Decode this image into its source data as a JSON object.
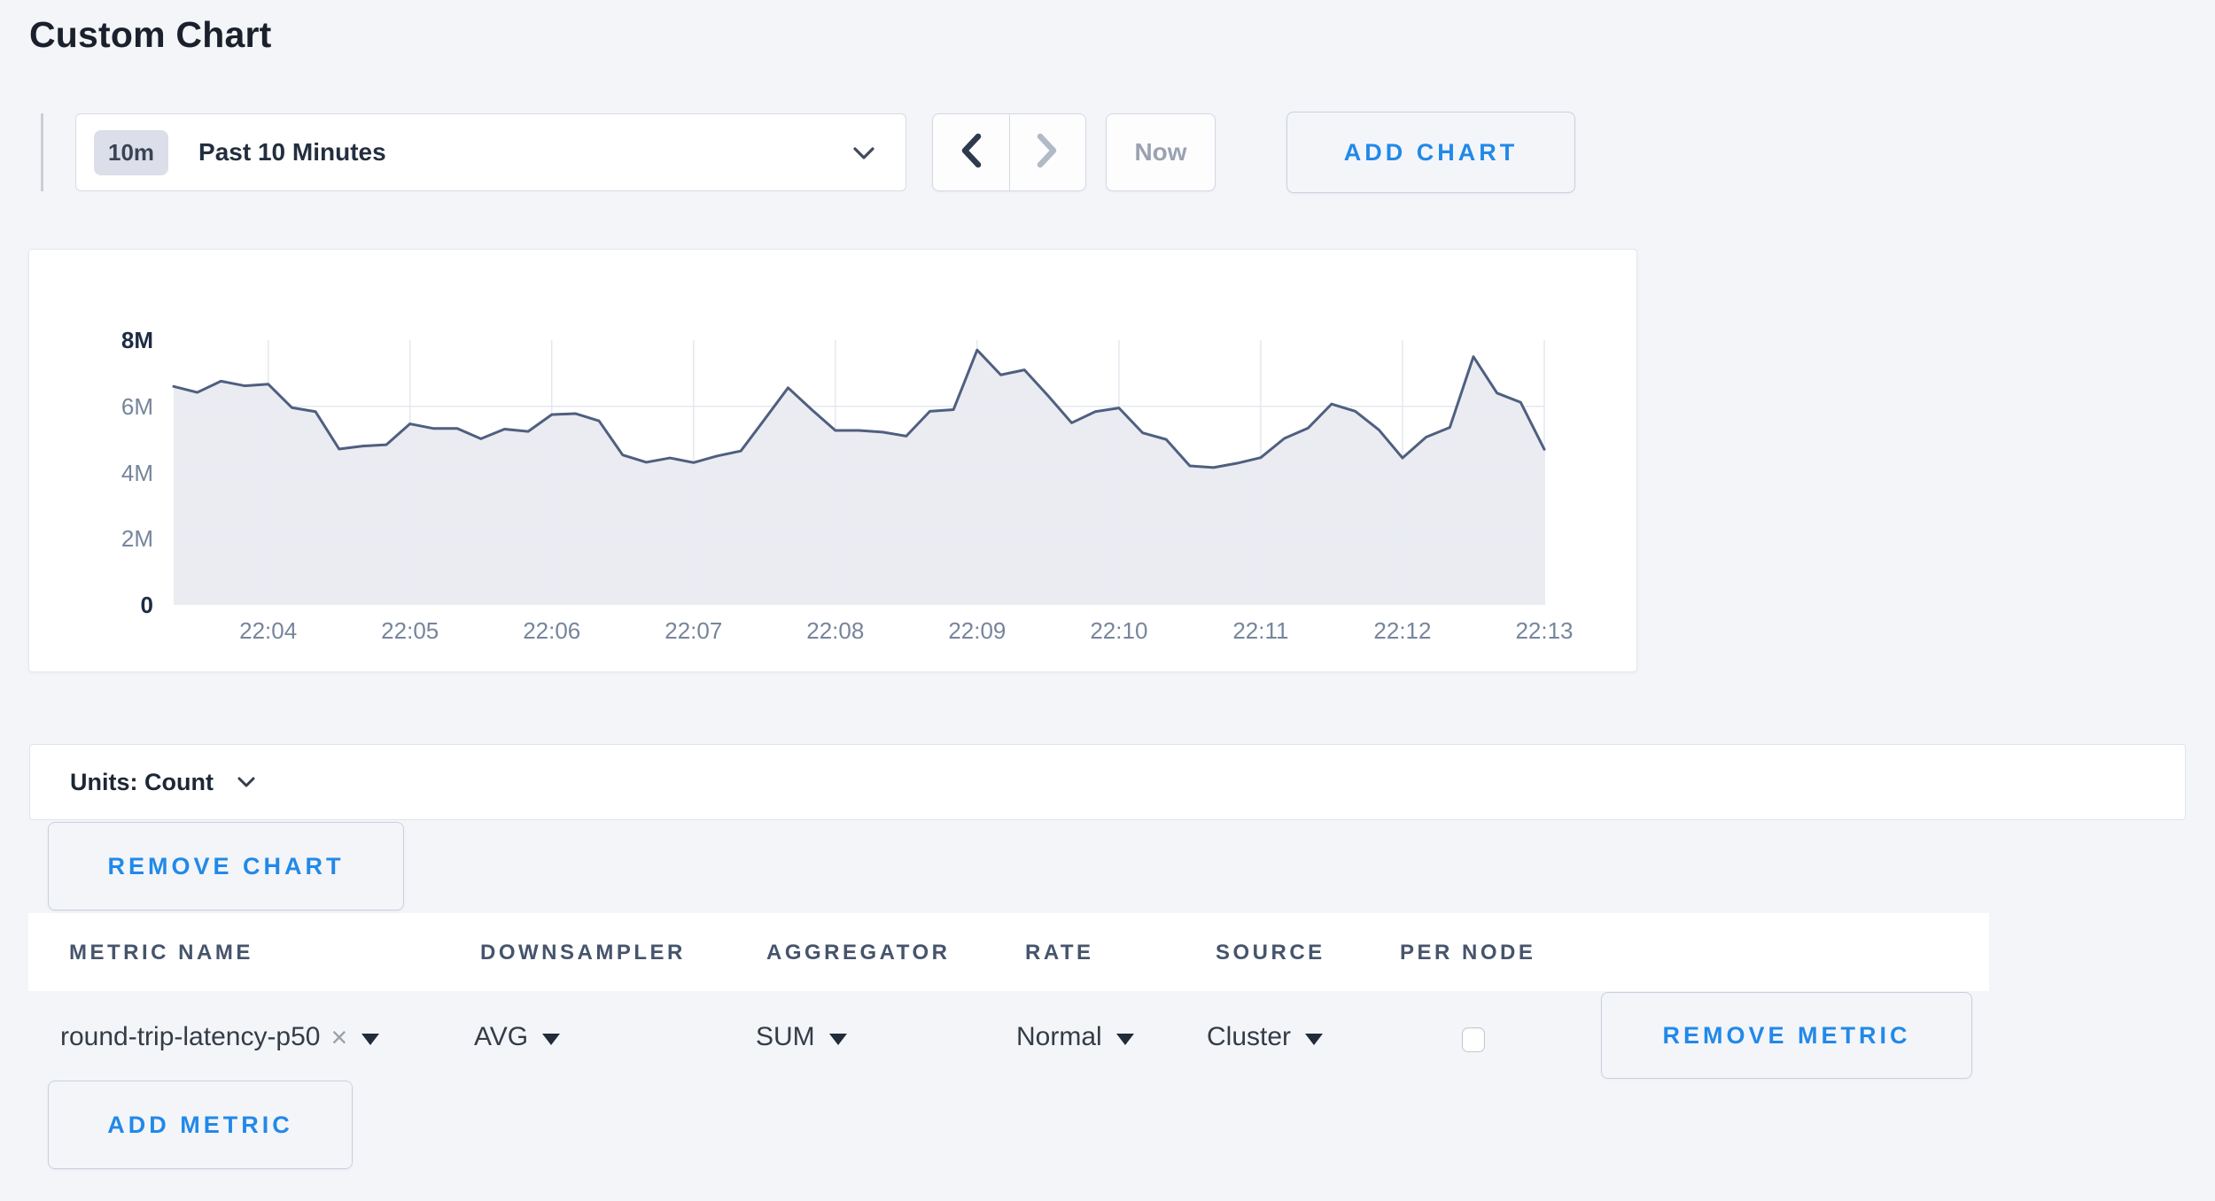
{
  "page": {
    "title": "Custom Chart",
    "background": "#f4f5f9",
    "accent_blue": "#2189e9"
  },
  "toolbar": {
    "time_window_badge": "10m",
    "time_window_label": "Past 10 Minutes",
    "now_label": "Now",
    "add_chart_label": "ADD CHART"
  },
  "chart": {
    "chart_data": {
      "type": "area",
      "title": "",
      "xlabel": "",
      "ylabel": "",
      "ylim": [
        0,
        8000000
      ],
      "grid": true,
      "unit_suffix": "M",
      "x_ticks": [
        "22:04",
        "22:05",
        "22:06",
        "22:07",
        "22:08",
        "22:09",
        "22:10",
        "22:11",
        "22:12",
        "22:13"
      ],
      "first_tick_point_index": 4,
      "points_per_tick_interval": 6,
      "interval_seconds": 10,
      "values_millions": [
        6.6,
        6.42,
        6.76,
        6.62,
        6.67,
        5.96,
        5.84,
        4.71,
        4.8,
        4.84,
        5.47,
        5.33,
        5.33,
        5.02,
        5.31,
        5.24,
        5.75,
        5.78,
        5.56,
        4.53,
        4.31,
        4.44,
        4.3,
        4.5,
        4.65,
        5.6,
        6.56,
        5.9,
        5.27,
        5.27,
        5.22,
        5.1,
        5.85,
        5.9,
        7.7,
        6.95,
        7.1,
        6.32,
        5.5,
        5.84,
        5.95,
        5.2,
        5.0,
        4.2,
        4.15,
        4.28,
        4.45,
        5.03,
        5.34,
        6.07,
        5.85,
        5.29,
        4.44,
        5.07,
        5.36,
        7.5,
        6.4,
        6.12,
        4.7
      ],
      "y_ticks": [
        {
          "label": "8M",
          "value": 8
        },
        {
          "label": "6M",
          "value": 6
        },
        {
          "label": "4M",
          "value": 4
        },
        {
          "label": "2M",
          "value": 2
        },
        {
          "label": "0",
          "value": 0
        }
      ],
      "line_color": "#4f5f7f",
      "fill_color": "#e8eaf1",
      "grid_color": "#e4e8ef"
    }
  },
  "units_bar": {
    "label": "Units: Count"
  },
  "chart_actions": {
    "remove_chart_label": "REMOVE CHART",
    "add_metric_label": "ADD METRIC"
  },
  "table": {
    "columns": [
      "METRIC NAME",
      "DOWNSAMPLER",
      "AGGREGATOR",
      "RATE",
      "SOURCE",
      "PER NODE"
    ],
    "row": {
      "metric_name": "round-trip-latency-p50",
      "remove_tag_glyph": "×",
      "downsampler": "AVG",
      "aggregator": "SUM",
      "rate": "Normal",
      "source": "Cluster",
      "per_node_checked": false,
      "remove_metric_label": "REMOVE METRIC"
    }
  }
}
